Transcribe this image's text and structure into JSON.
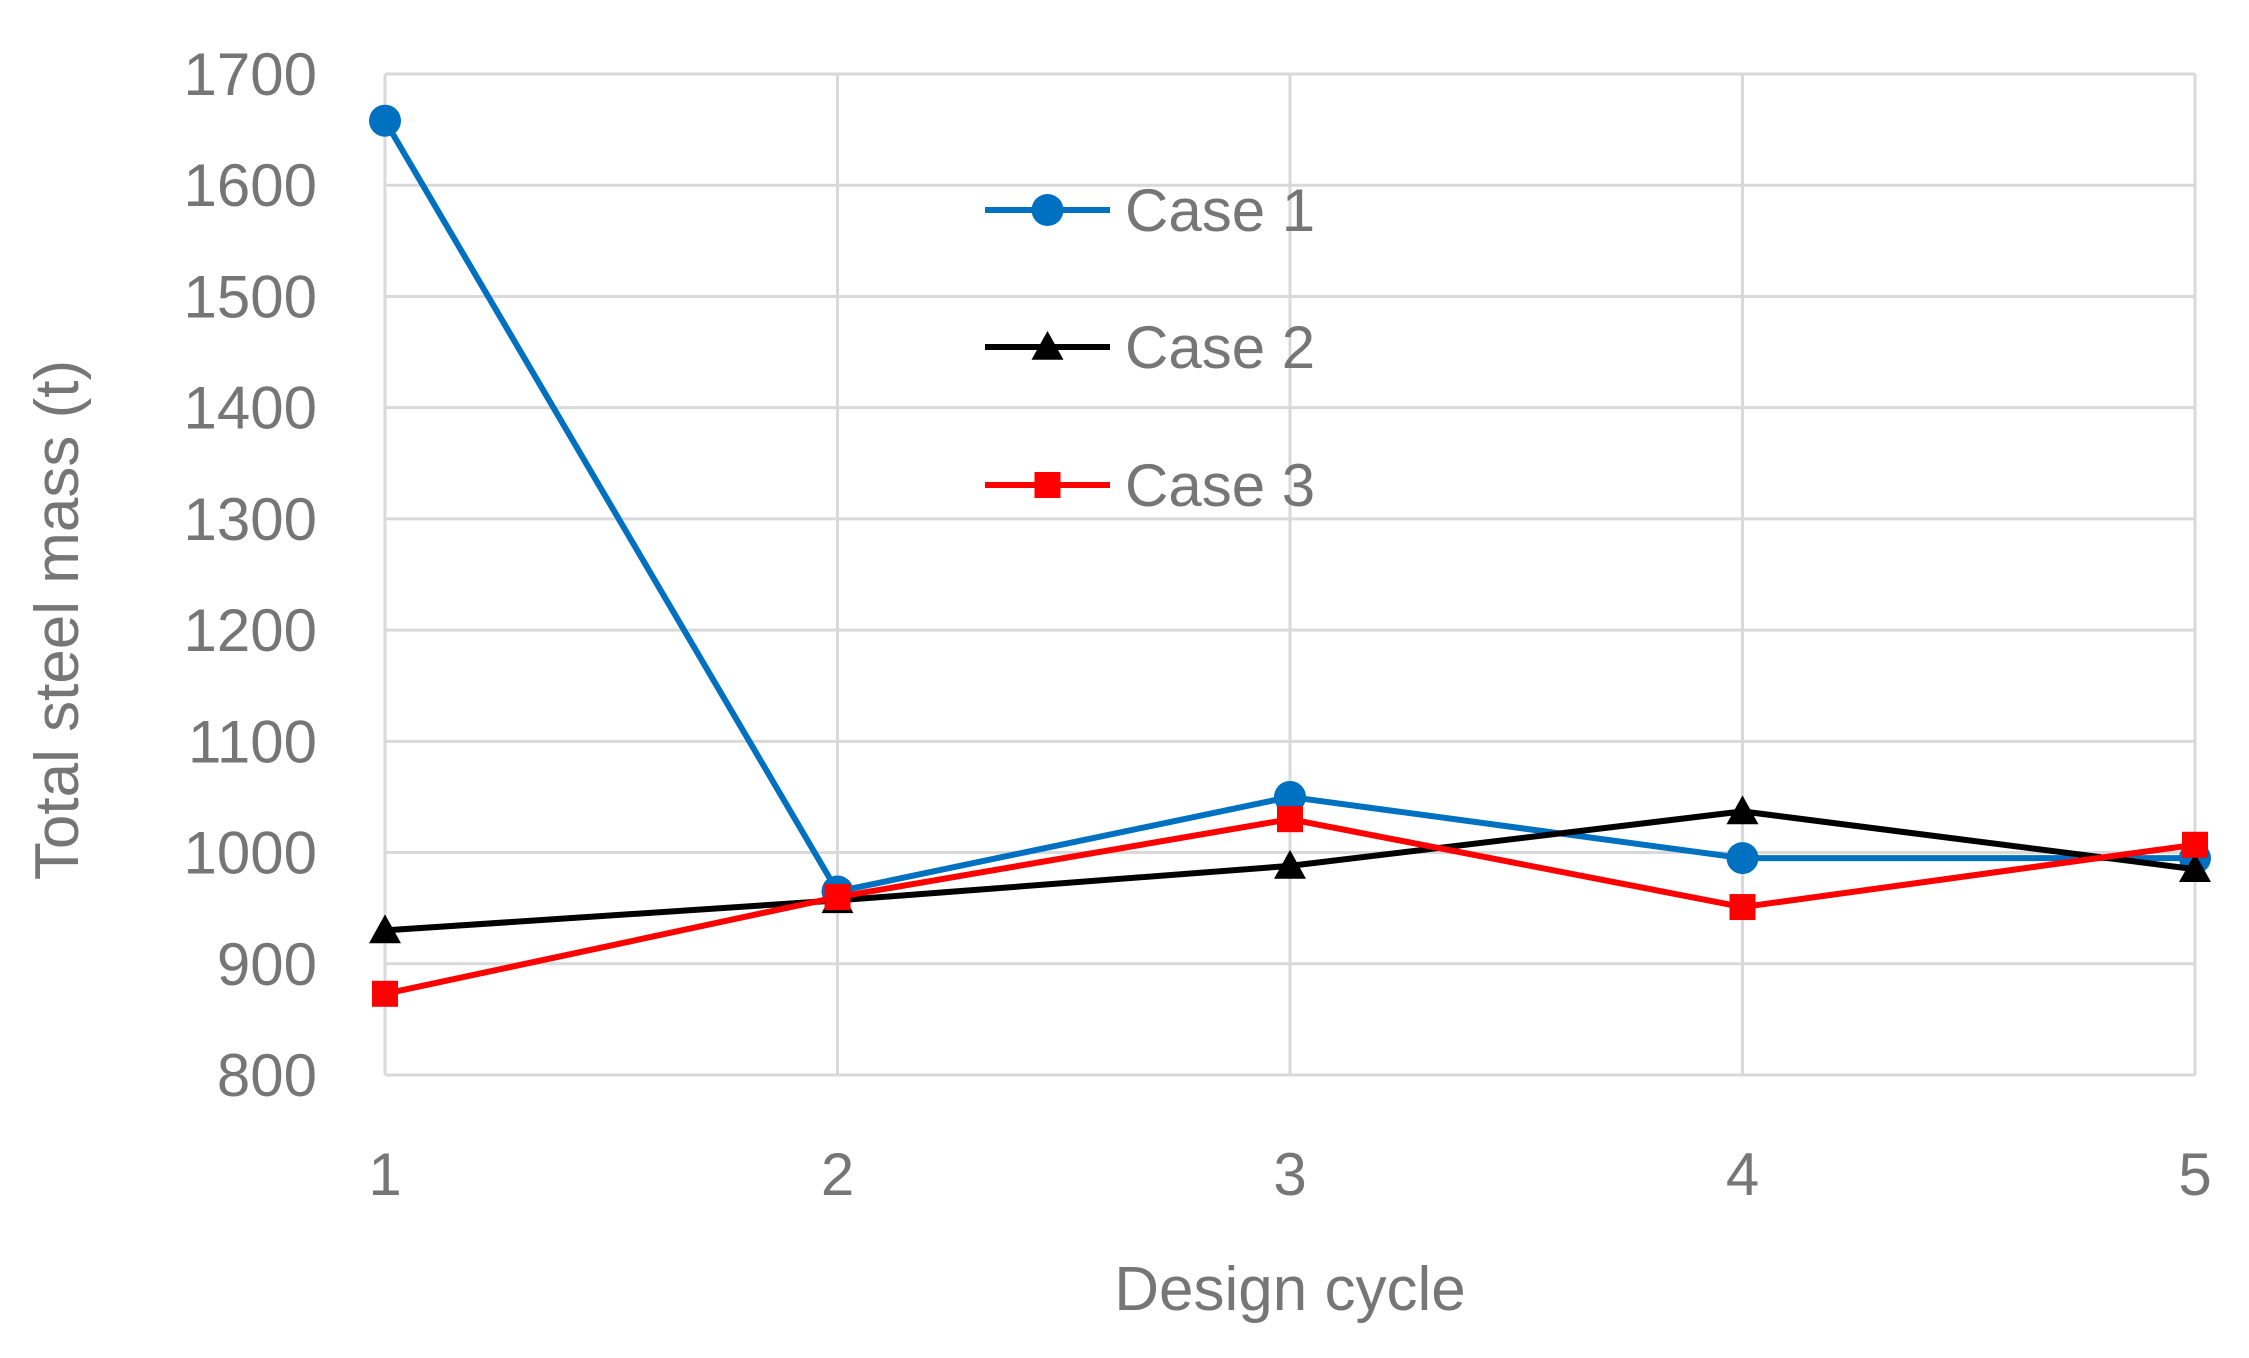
{
  "chart_data": {
    "type": "line",
    "title": "",
    "xlabel": "Design cycle",
    "ylabel": "Total steel mass (t)",
    "x": [
      1,
      2,
      3,
      4,
      5
    ],
    "xticks": [
      "1",
      "2",
      "3",
      "4",
      "5"
    ],
    "xlim": [
      1,
      5
    ],
    "ylim": [
      800,
      1700
    ],
    "yticks": [
      "800",
      "900",
      "1000",
      "1100",
      "1200",
      "1300",
      "1400",
      "1500",
      "1600",
      "1700"
    ],
    "grid": true,
    "legend_position": "top-center",
    "series": [
      {
        "name": "Case 1",
        "color": "#0070C0",
        "marker": "circle",
        "values": [
          1658,
          965,
          1050,
          995,
          995
        ]
      },
      {
        "name": "Case 2",
        "color": "#000000",
        "marker": "triangle",
        "values": [
          930,
          957,
          988,
          1037,
          985
        ]
      },
      {
        "name": "Case 3",
        "color": "#FF0000",
        "marker": "square",
        "values": [
          873,
          960,
          1030,
          951,
          1007
        ]
      }
    ]
  }
}
